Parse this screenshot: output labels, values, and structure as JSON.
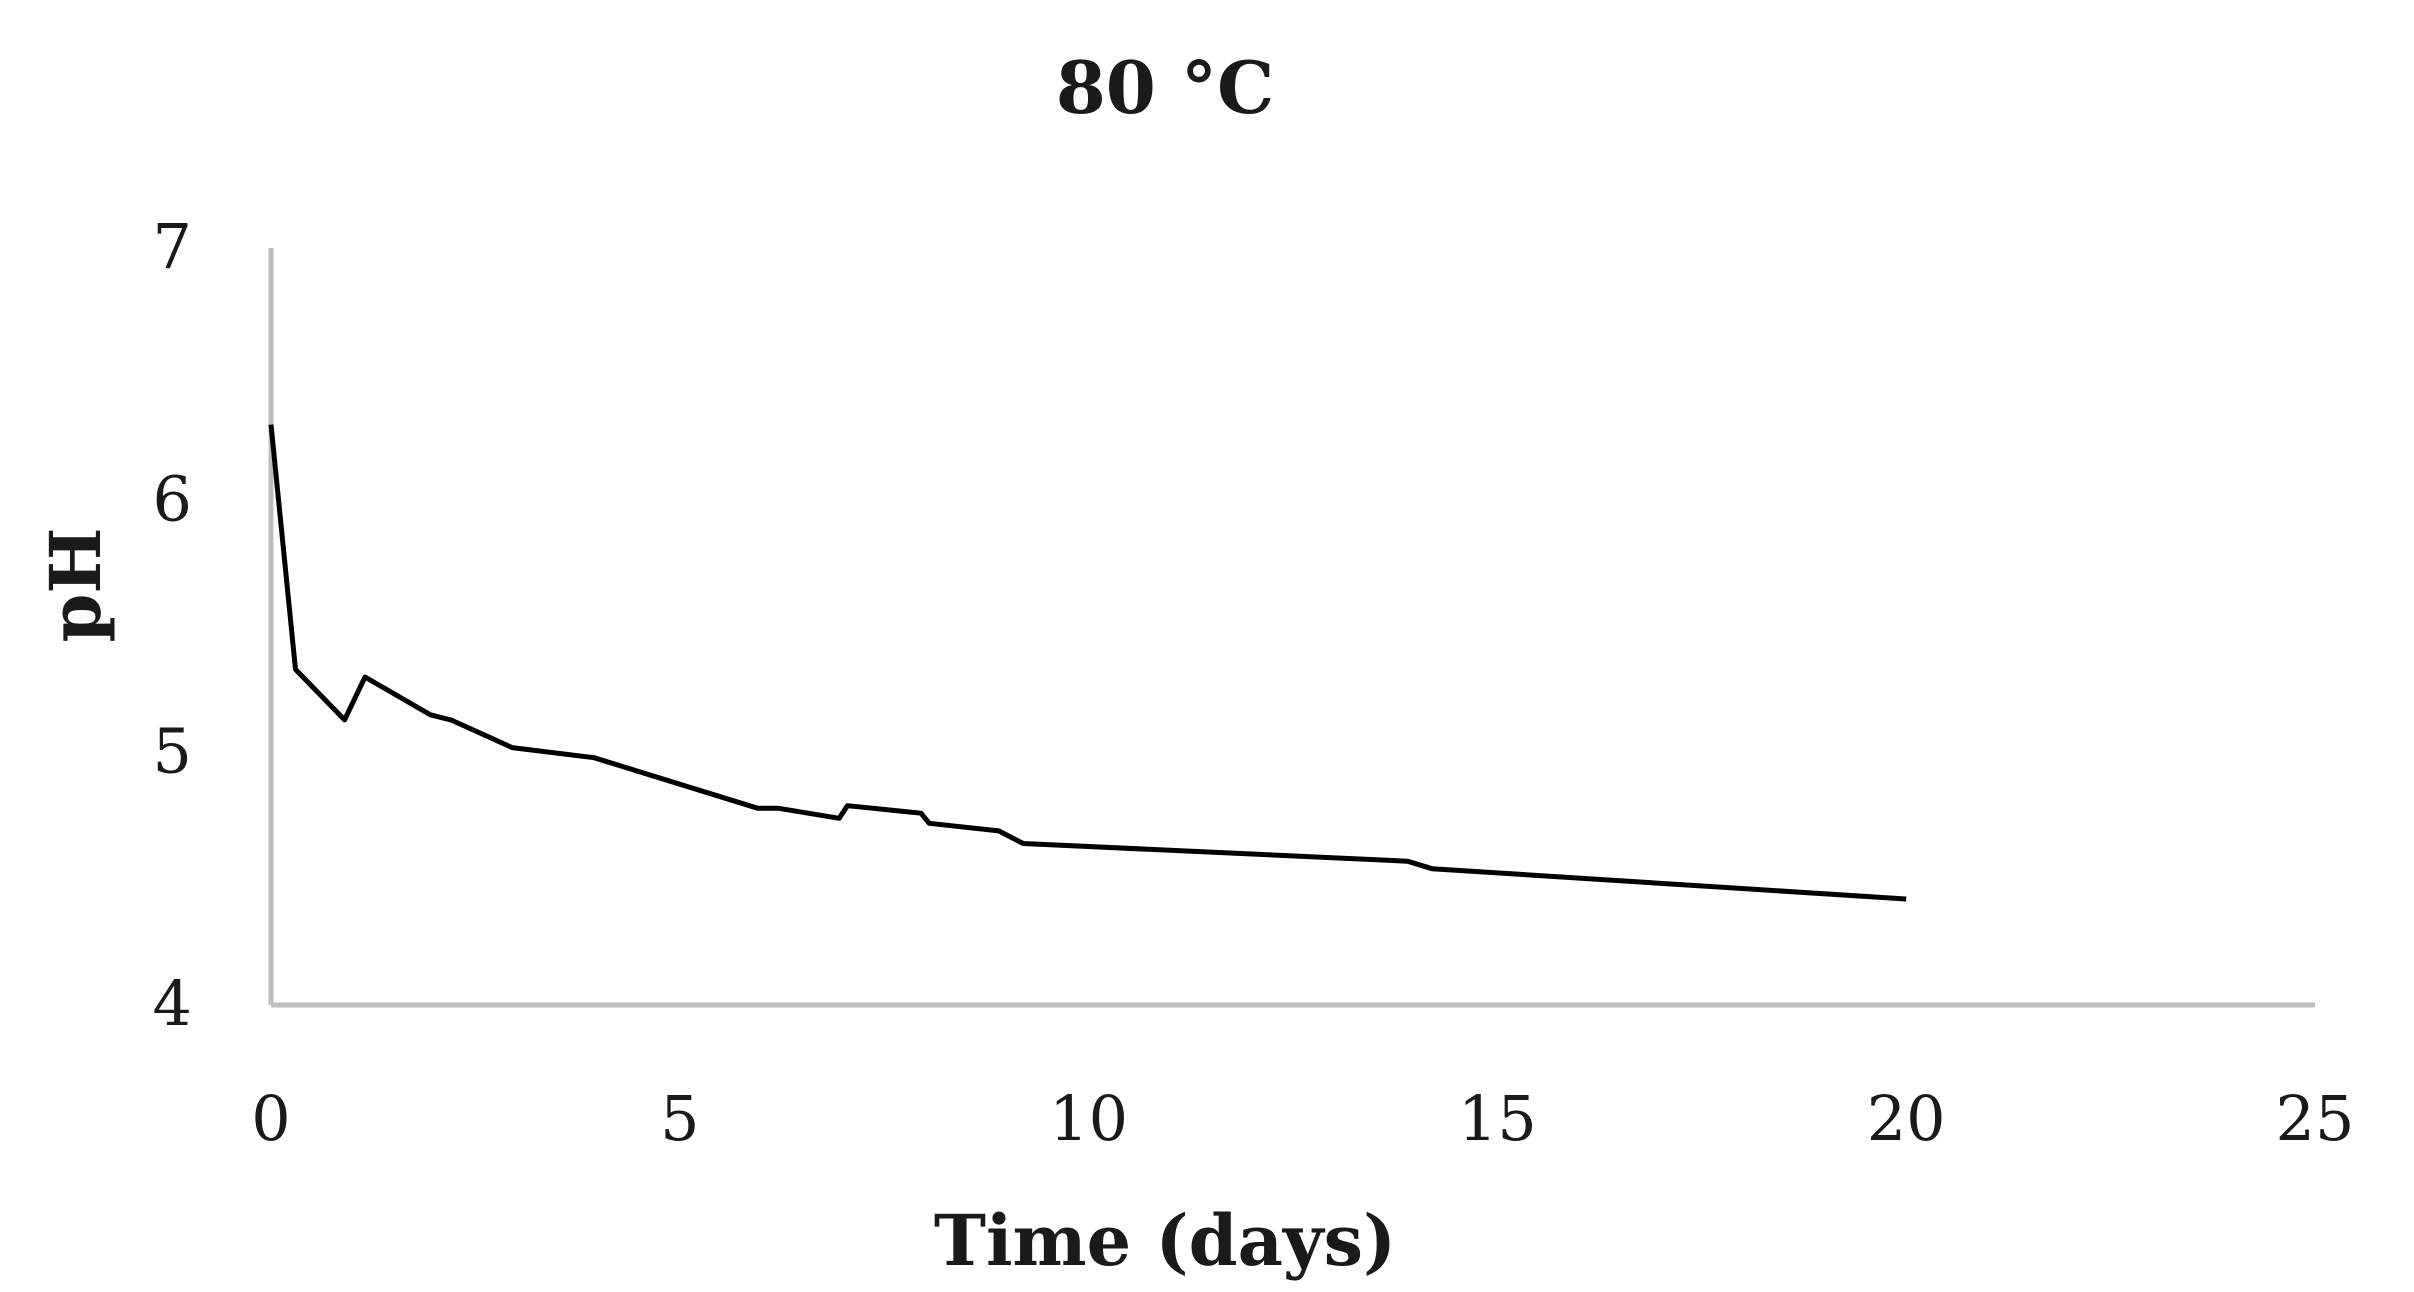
{
  "chart_data": {
    "type": "line",
    "title": "80 °C",
    "xlabel": "Time (days)",
    "ylabel": "pH",
    "xlim": [
      0,
      25
    ],
    "ylim": [
      4,
      7
    ],
    "xticks": [
      0,
      5,
      10,
      15,
      20,
      25
    ],
    "yticks": [
      4,
      5,
      6,
      7
    ],
    "grid": false,
    "legend": "none",
    "colors": {
      "series": "#000000",
      "axis": "#bfbfbf",
      "text": "#1a1a1a"
    },
    "series": [
      {
        "x": [
          0,
          0.3,
          0.9,
          1.15,
          1.95,
          2.2,
          2.95,
          3.95,
          5.95,
          6.2,
          6.95,
          7.05,
          7.95,
          8.05,
          8.9,
          9.2,
          13.9,
          14.2,
          20
        ],
        "y": [
          6.3,
          5.33,
          5.13,
          5.3,
          5.15,
          5.13,
          5.02,
          4.98,
          4.78,
          4.78,
          4.74,
          4.79,
          4.76,
          4.72,
          4.69,
          4.64,
          4.57,
          4.54,
          4.42
        ]
      }
    ]
  }
}
